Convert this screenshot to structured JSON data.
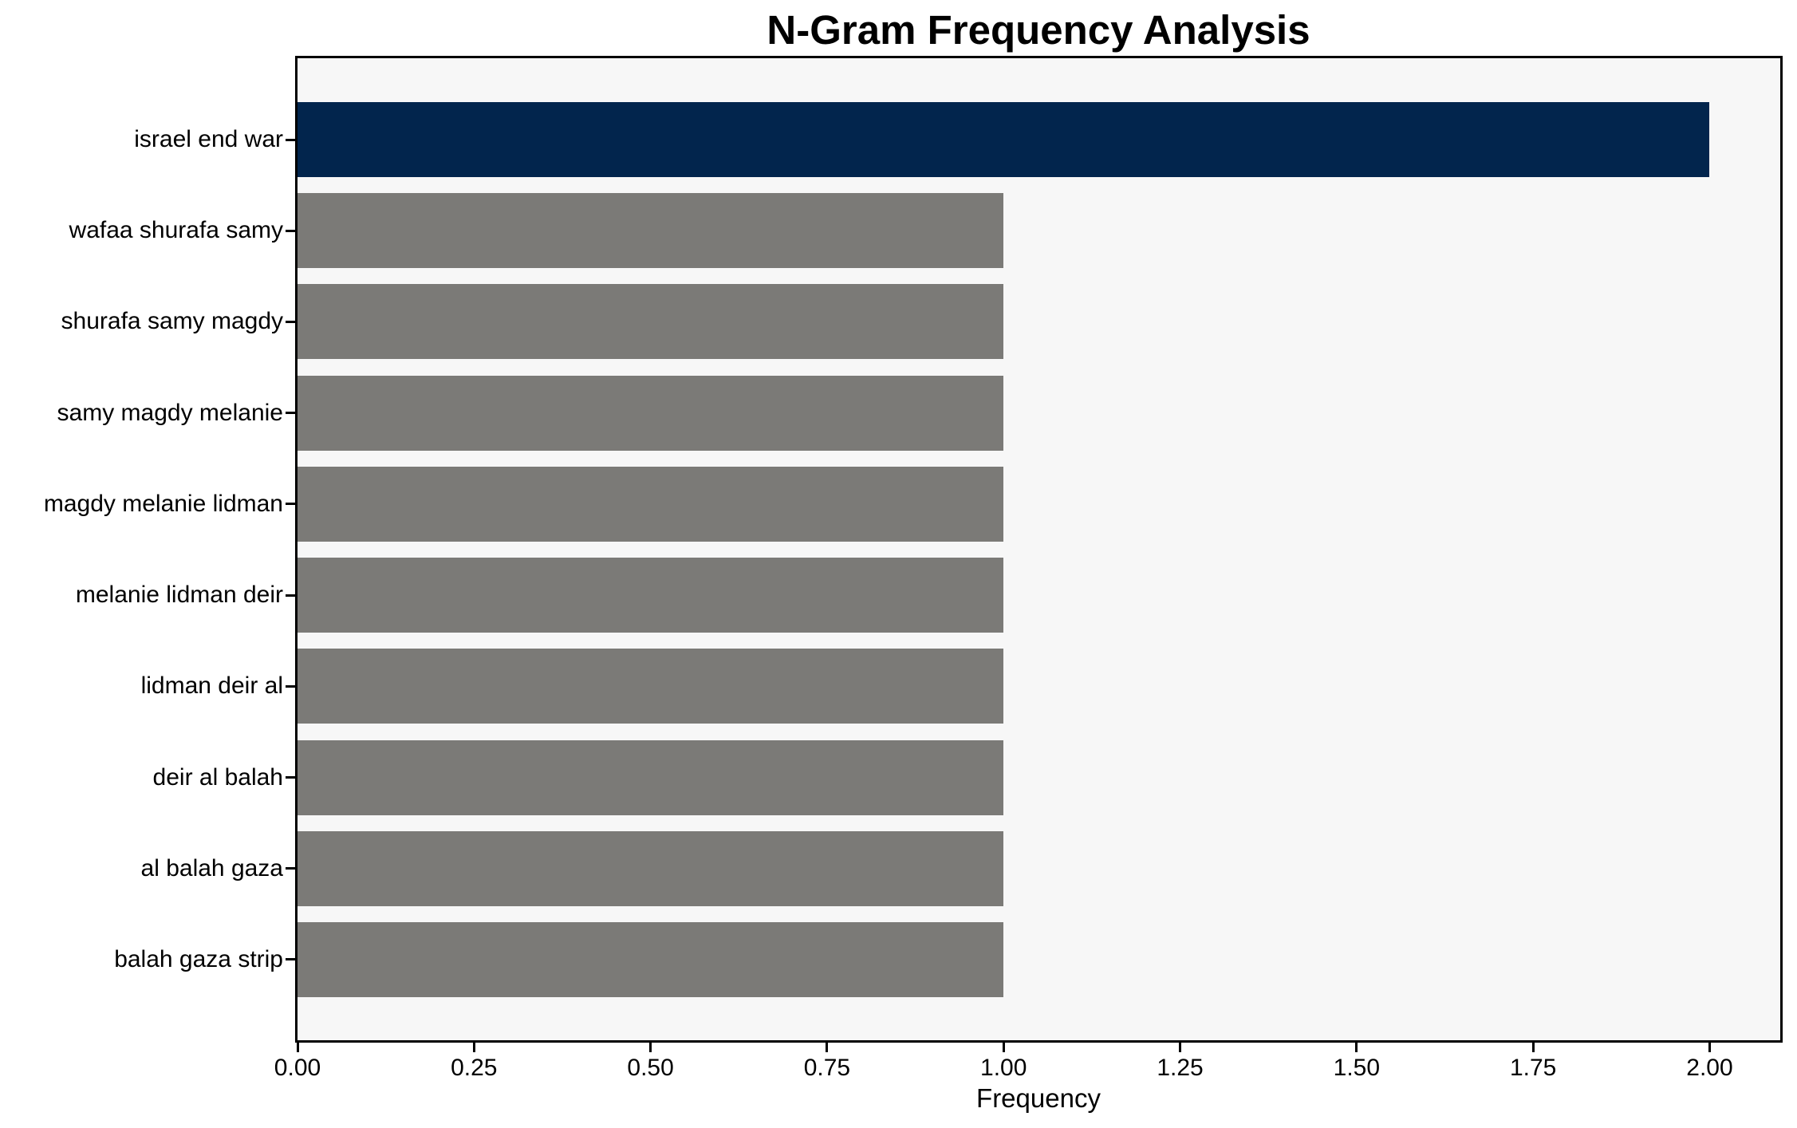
{
  "chart_data": {
    "type": "bar",
    "orientation": "horizontal",
    "title": "N-Gram Frequency Analysis",
    "xlabel": "Frequency",
    "ylabel": "",
    "categories": [
      "israel end war",
      "wafaa shurafa samy",
      "shurafa samy magdy",
      "samy magdy melanie",
      "magdy melanie lidman",
      "melanie lidman deir",
      "lidman deir al",
      "deir al balah",
      "al balah gaza",
      "balah gaza strip"
    ],
    "values": [
      2,
      1,
      1,
      1,
      1,
      1,
      1,
      1,
      1,
      1
    ],
    "bar_colors": [
      "#02254d",
      "#7b7a77",
      "#7b7a77",
      "#7b7a77",
      "#7b7a77",
      "#7b7a77",
      "#7b7a77",
      "#7b7a77",
      "#7b7a77",
      "#7b7a77"
    ],
    "x_tick_labels": [
      "0.00",
      "0.25",
      "0.50",
      "0.75",
      "1.00",
      "1.25",
      "1.50",
      "1.75",
      "2.00"
    ],
    "xlim": [
      0,
      2.1
    ],
    "grid": false,
    "legend": false,
    "plot_bg_color": "#f7f7f7",
    "figure_bg_color": "#ffffff",
    "spine_color": "#000000",
    "text_color": "#000000"
  }
}
